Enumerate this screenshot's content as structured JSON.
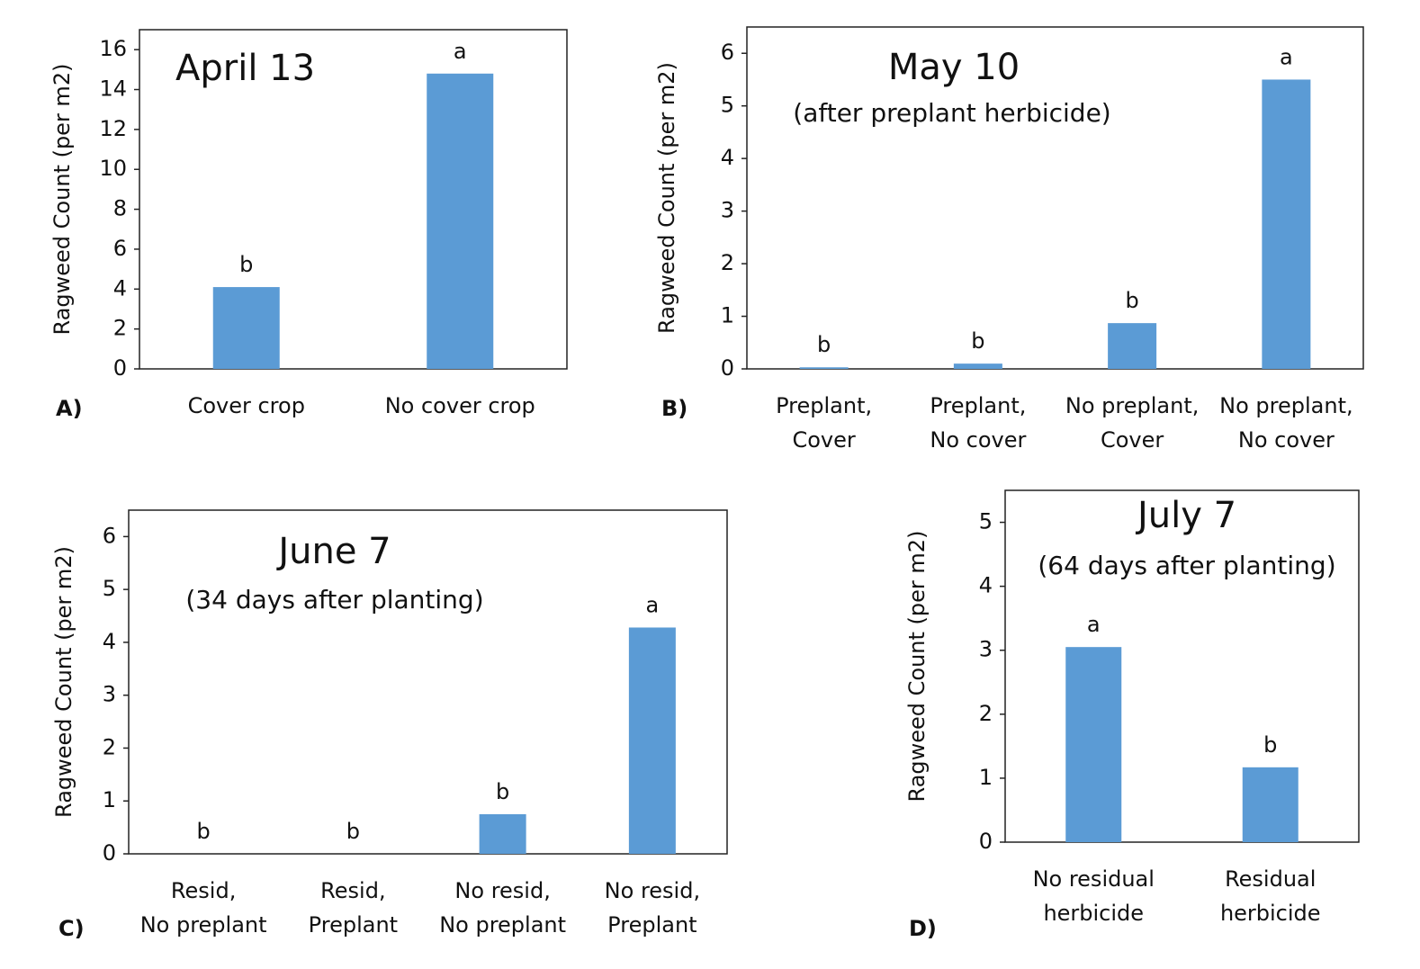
{
  "chart_data": [
    {
      "type": "bar",
      "panel_label": "A)",
      "title": "April 13",
      "y_label": "Ragweed Count (per m2)",
      "categories": [
        [
          "Cover crop"
        ],
        [
          "No cover crop"
        ]
      ],
      "values": [
        4.1,
        14.8
      ],
      "annotations": [
        "b",
        "a"
      ],
      "ylim": [
        0,
        17
      ],
      "yticks": [
        0,
        2,
        4,
        6,
        8,
        10,
        12,
        14,
        16
      ],
      "color": "#5b9bd5"
    },
    {
      "type": "bar",
      "panel_label": "B)",
      "title": "May 10",
      "subtitle": "(after preplant herbicide)",
      "y_label": "Ragweed Count (per m2)",
      "categories": [
        [
          "Preplant,",
          "Cover"
        ],
        [
          "Preplant,",
          "No cover"
        ],
        [
          "No preplant,",
          "Cover"
        ],
        [
          "No preplant,",
          "No cover"
        ]
      ],
      "values": [
        0.03,
        0.1,
        0.87,
        5.5
      ],
      "annotations": [
        "b",
        "b",
        "b",
        "a"
      ],
      "ylim": [
        0,
        6.5
      ],
      "yticks": [
        0,
        1,
        2,
        3,
        4,
        5,
        6
      ],
      "color": "#5b9bd5"
    },
    {
      "type": "bar",
      "panel_label": "C)",
      "title": "June 7",
      "subtitle": "(34 days after planting)",
      "y_label": "Ragweed Count (per m2)",
      "categories": [
        [
          "Resid,",
          "No preplant"
        ],
        [
          "Resid,",
          "Preplant"
        ],
        [
          "No resid,",
          "No preplant"
        ],
        [
          "No resid,",
          "Preplant"
        ]
      ],
      "values": [
        0,
        0,
        0.75,
        4.28
      ],
      "annotations": [
        "b",
        "b",
        "b",
        "a"
      ],
      "ylim": [
        0,
        6.5
      ],
      "yticks": [
        0,
        1,
        2,
        3,
        4,
        5,
        6
      ],
      "color": "#5b9bd5"
    },
    {
      "type": "bar",
      "panel_label": "D)",
      "title": "July 7",
      "subtitle": "(64 days after planting)",
      "y_label": "Ragweed Count (per m2)",
      "categories": [
        [
          "No residual",
          "herbicide"
        ],
        [
          "Residual",
          "herbicide"
        ]
      ],
      "values": [
        3.05,
        1.17
      ],
      "annotations": [
        "a",
        "b"
      ],
      "ylim": [
        0,
        5.5
      ],
      "yticks": [
        0,
        1,
        2,
        3,
        4,
        5
      ],
      "color": "#5b9bd5"
    }
  ]
}
